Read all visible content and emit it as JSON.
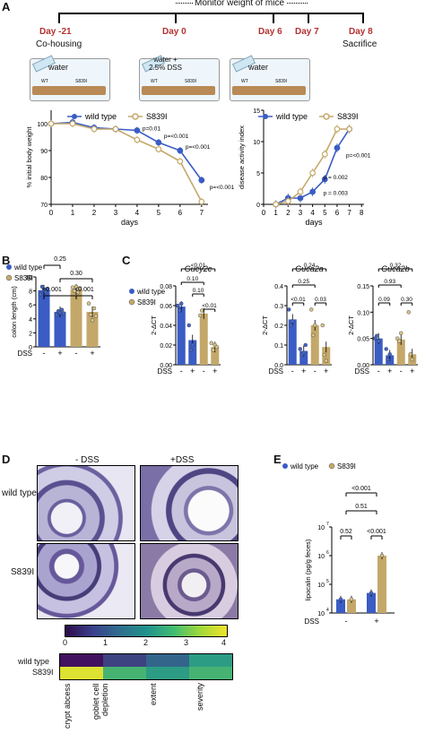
{
  "panel_labels": {
    "A": "A",
    "B": "B",
    "C": "C",
    "D": "D",
    "E": "E"
  },
  "timeline": {
    "monitor": "Monitor weight of mice",
    "days": [
      "Day -21",
      "Day 0",
      "Day 6",
      "Day 7",
      "Day 8"
    ],
    "below": [
      "Co-housing",
      "water +\n2.5% DSS",
      "",
      "",
      "Sacrifice"
    ],
    "cages": [
      "water",
      "water +\n2.5% DSS",
      "water"
    ],
    "cage_labels": [
      "WT",
      "S839I"
    ]
  },
  "legend": {
    "wt": "wild type",
    "s839": "S839I"
  },
  "colors": {
    "wt": "#3a5cc4",
    "s839": "#c4a86a"
  },
  "chart_data": [
    {
      "type": "line",
      "ylabel": "% initial body weight",
      "xlabel": "days",
      "ylim": [
        70,
        105
      ],
      "yticks": [
        70,
        80,
        90,
        100
      ],
      "xticks": [
        0,
        1,
        2,
        3,
        4,
        5,
        6,
        7
      ],
      "series": [
        {
          "name": "wild type",
          "x": [
            0,
            1,
            2,
            3,
            4,
            5,
            6,
            7
          ],
          "y": [
            100,
            100.5,
            98.5,
            98,
            97.5,
            93,
            90,
            79
          ]
        },
        {
          "name": "S839I",
          "x": [
            0,
            1,
            2,
            3,
            4,
            5,
            6,
            7
          ],
          "y": [
            100,
            100,
            98,
            98,
            94,
            90.5,
            86,
            71
          ]
        }
      ],
      "annotations": [
        "p=0.01",
        "p=<0.001",
        "p=<0.001",
        "p=<0.001"
      ]
    },
    {
      "type": "line",
      "ylabel": "disease activity index",
      "xlabel": "days",
      "ylim": [
        0,
        15
      ],
      "yticks": [
        0,
        5,
        10,
        15
      ],
      "xticks": [
        0,
        1,
        2,
        3,
        4,
        5,
        6,
        7,
        8
      ],
      "series": [
        {
          "name": "wild type",
          "x": [
            1,
            2,
            3,
            4,
            5,
            6,
            7
          ],
          "y": [
            0,
            1,
            1,
            2,
            4,
            9,
            12
          ]
        },
        {
          "name": "S839I",
          "x": [
            1,
            2,
            3,
            4,
            5,
            6,
            7
          ],
          "y": [
            0,
            0.5,
            2,
            5,
            8,
            12,
            12
          ]
        }
      ],
      "annotations": [
        "p=<0.001",
        "p = 0.002",
        "p = 0.003"
      ]
    },
    {
      "type": "bar",
      "ylabel": "colon length (cm)",
      "ylim": [
        0,
        10
      ],
      "yticks": [
        0,
        2,
        4,
        6,
        8,
        10
      ],
      "categories": [
        "-",
        "+",
        "-",
        "+"
      ],
      "values": [
        8.1,
        5.0,
        8.2,
        5.0
      ],
      "dss_label": "DSS",
      "pvalues": [
        "0.25",
        "0.30",
        "<0.001",
        "<0.001"
      ]
    },
    {
      "type": "bar",
      "title": "Gucy2c",
      "ylabel": "2-ΔCT",
      "ylim": [
        0,
        0.08
      ],
      "yticks": [
        0.0,
        0.02,
        0.04,
        0.06,
        0.08
      ],
      "categories": [
        "-",
        "+",
        "-",
        "+"
      ],
      "values": [
        0.059,
        0.025,
        0.052,
        0.018
      ],
      "pvalues": [
        "<0.01",
        "0.10",
        "0.10",
        "<0.01"
      ]
    },
    {
      "type": "bar",
      "title": "Guca2a",
      "ylabel": "2-ΔCT",
      "ylim": [
        0,
        0.4
      ],
      "yticks": [
        0.0,
        0.1,
        0.2,
        0.3,
        0.4
      ],
      "categories": [
        "-",
        "+",
        "-",
        "+"
      ],
      "values": [
        0.23,
        0.07,
        0.2,
        0.09
      ],
      "pvalues": [
        "0.24",
        "0.25",
        "<0.01",
        "0.03"
      ]
    },
    {
      "type": "bar",
      "title": "Guca2b",
      "ylabel": "2-ΔCT",
      "ylim": [
        0,
        0.15
      ],
      "yticks": [
        0.0,
        0.05,
        0.1,
        0.15
      ],
      "categories": [
        "-",
        "+",
        "-",
        "+"
      ],
      "values": [
        0.05,
        0.018,
        0.048,
        0.02
      ],
      "pvalues": [
        "0.32",
        "0.93",
        "0.09",
        "0.30"
      ]
    },
    {
      "type": "bar",
      "ylabel": "lipocalin (pg/g feces)",
      "yscale": "log",
      "ylim": [
        10000,
        10000000
      ],
      "yticks": [
        "10^4",
        "10^5",
        "10^6",
        "10^7"
      ],
      "categories": [
        "-",
        "-",
        "+",
        "+"
      ],
      "values": [
        30000,
        30000,
        50000,
        1000000
      ],
      "pvalues": [
        "<0.001",
        "0.51",
        "0.52",
        "<0.001"
      ]
    }
  ],
  "dss": {
    "label": "DSS",
    "minus": "-",
    "plus": "+"
  },
  "histo": {
    "cols": [
      "- DSS",
      "+DSS"
    ],
    "rows": [
      "wild type",
      "S839I"
    ]
  },
  "heatmap": {
    "scale": [
      "0",
      "1",
      "2",
      "3",
      "4"
    ],
    "rows": [
      "wild type",
      "S839I"
    ],
    "cols": [
      "crypt abcess",
      "goblet cell depletion",
      "extent",
      "severity"
    ],
    "values": [
      [
        0.2,
        0.8,
        1.3,
        2.2
      ],
      [
        3.8,
        2.6,
        2.2,
        2.6
      ]
    ]
  }
}
